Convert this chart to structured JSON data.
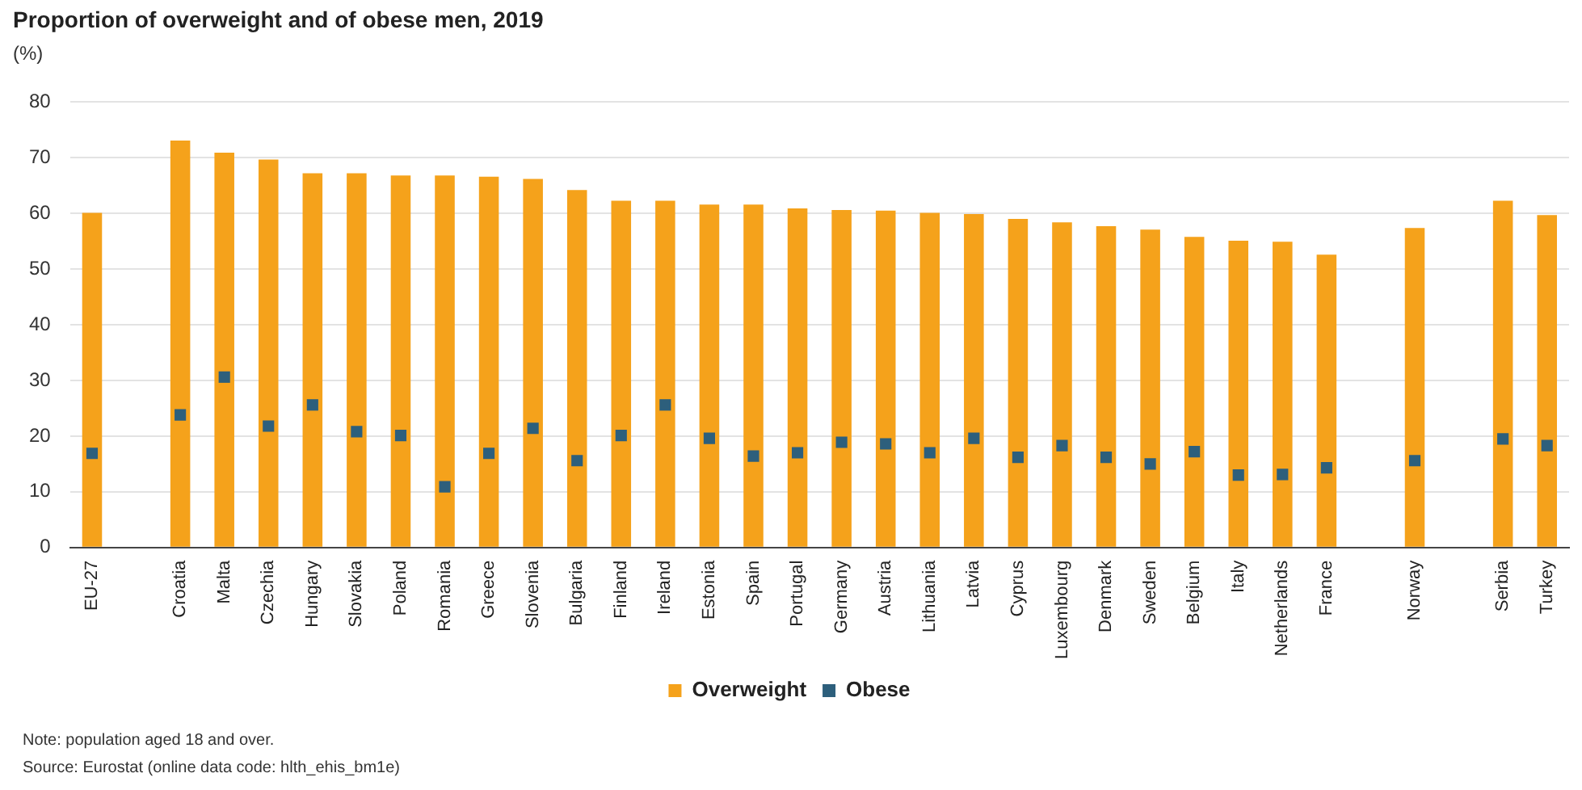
{
  "chart_data": {
    "type": "bar",
    "title": "Proportion of overweight and of obese men, 2019",
    "ylabel": "(%)",
    "categories": [
      "EU-27",
      null,
      "Croatia",
      "Malta",
      "Czechia",
      "Hungary",
      "Slovakia",
      "Poland",
      "Romania",
      "Greece",
      "Slovenia",
      "Bulgaria",
      "Finland",
      "Ireland",
      "Estonia",
      "Spain",
      "Portugal",
      "Germany",
      "Austria",
      "Lithuania",
      "Latvia",
      "Cyprus",
      "Luxembourg",
      "Denmark",
      "Sweden",
      "Belgium",
      "Italy",
      "Netherlands",
      "France",
      null,
      "Norway",
      null,
      "Serbia",
      "Turkey"
    ],
    "series": [
      {
        "name": "Overweight",
        "type": "bar",
        "color": "#f5a21b",
        "values": [
          60.1,
          null,
          73.1,
          70.9,
          69.7,
          67.2,
          67.2,
          66.8,
          66.8,
          66.6,
          66.2,
          64.2,
          62.3,
          62.3,
          61.6,
          61.6,
          60.9,
          60.6,
          60.5,
          60.1,
          59.9,
          59.0,
          58.4,
          57.7,
          57.1,
          55.8,
          55.1,
          54.9,
          52.6,
          null,
          57.4,
          null,
          62.3,
          59.7
        ]
      },
      {
        "name": "Obese",
        "type": "scatter",
        "marker": "square",
        "color": "#2d5f7c",
        "x": [
          "EU-27",
          "Croatia",
          "Malta",
          "Czechia",
          "Hungary",
          "Slovakia",
          "Poland",
          "Romania",
          "Greece",
          "Slovenia",
          "Bulgaria",
          "Finland",
          "Ireland",
          "Estonia",
          "Spain",
          "Portugal",
          "Germany",
          "Austria",
          "Lithuania",
          "Latvia",
          "Cyprus",
          "Luxembourg",
          "Denmark",
          "Sweden",
          "Belgium",
          "Italy",
          "Netherlands",
          "France",
          "Norway",
          "Serbia",
          "Turkey"
        ],
        "values": [
          16.9,
          23.8,
          30.6,
          21.8,
          25.6,
          20.8,
          20.1,
          10.9,
          16.9,
          21.4,
          15.6,
          20.1,
          25.6,
          19.6,
          16.4,
          17.0,
          18.9,
          18.6,
          17.0,
          19.6,
          16.2,
          18.3,
          16.2,
          15.0,
          17.2,
          13.0,
          13.1,
          14.3,
          15.6,
          19.5,
          18.3
        ]
      }
    ],
    "ylim": [
      0,
      80
    ],
    "yticks": [
      0,
      10,
      20,
      30,
      40,
      50,
      60,
      70,
      80
    ],
    "grid": "y",
    "legend": "bottom",
    "annotations": [
      "Note: population aged 18 and over.",
      "Source: Eurostat (online data code: hlth_ehis_bm1e)"
    ]
  }
}
